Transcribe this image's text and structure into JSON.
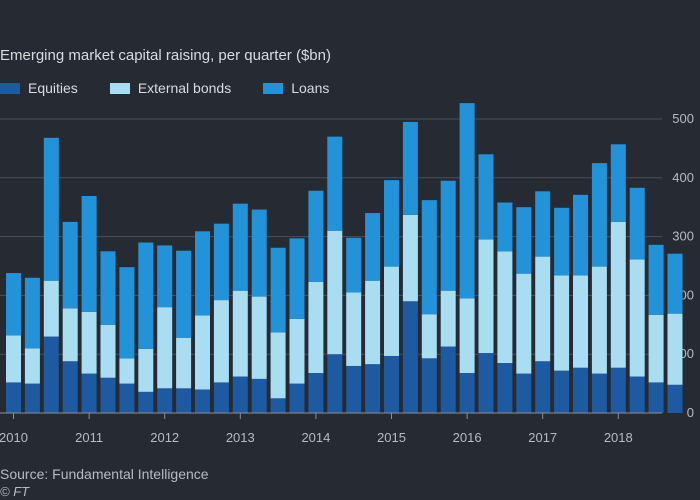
{
  "chart_data": {
    "type": "bar",
    "stacked": true,
    "title": "Emerging market capital raising, per quarter ($bn)",
    "ylabel": "",
    "xlabel": "",
    "ylim": [
      0,
      500
    ],
    "yticks": [
      0,
      100,
      200,
      300,
      400,
      500
    ],
    "ytick_labels": [
      "0",
      "100",
      "200",
      "300",
      "400",
      "500"
    ],
    "y_axis_side": "right",
    "grid": true,
    "legend_position": "top-left",
    "year_labels": [
      "2010",
      "2011",
      "2012",
      "2013",
      "2014",
      "2015",
      "2016",
      "2017",
      "2018"
    ],
    "year_first_quarter_index": [
      0,
      4,
      8,
      12,
      16,
      20,
      24,
      28,
      32
    ],
    "categories": [
      "2010 Q1",
      "2010 Q2",
      "2010 Q3",
      "2010 Q4",
      "2011 Q1",
      "2011 Q2",
      "2011 Q3",
      "2011 Q4",
      "2012 Q1",
      "2012 Q2",
      "2012 Q3",
      "2012 Q4",
      "2013 Q1",
      "2013 Q2",
      "2013 Q3",
      "2013 Q4",
      "2014 Q1",
      "2014 Q2",
      "2014 Q3",
      "2014 Q4",
      "2015 Q1",
      "2015 Q2",
      "2015 Q3",
      "2015 Q4",
      "2016 Q1",
      "2016 Q2",
      "2016 Q3",
      "2016 Q4",
      "2017 Q1",
      "2017 Q2",
      "2017 Q3",
      "2017 Q4",
      "2018 Q1",
      "2018 Q2",
      "2018 Q3",
      "2018 Q4"
    ],
    "series": [
      {
        "name": "Equities",
        "color": "#1d5aa2",
        "values": [
          52,
          50,
          130,
          88,
          67,
          60,
          50,
          36,
          42,
          42,
          40,
          52,
          62,
          58,
          25,
          50,
          68,
          100,
          80,
          83,
          97,
          190,
          93,
          113,
          68,
          102,
          85,
          67,
          88,
          72,
          77,
          67,
          77,
          62,
          52,
          48
        ]
      },
      {
        "name": "External bonds",
        "color": "#a8ddf2",
        "values": [
          80,
          60,
          95,
          90,
          105,
          90,
          43,
          73,
          138,
          86,
          126,
          140,
          146,
          140,
          112,
          110,
          155,
          210,
          125,
          142,
          152,
          147,
          75,
          95,
          127,
          193,
          190,
          170,
          178,
          162,
          157,
          182,
          248,
          199,
          115,
          121
        ]
      },
      {
        "name": "Loans",
        "color": "#2393d9",
        "values": [
          106,
          120,
          243,
          147,
          197,
          125,
          155,
          181,
          105,
          148,
          143,
          130,
          148,
          148,
          144,
          137,
          155,
          160,
          93,
          115,
          147,
          158,
          194,
          187,
          332,
          145,
          83,
          113,
          111,
          115,
          137,
          176,
          132,
          122,
          119,
          102
        ]
      }
    ]
  },
  "labels": {
    "title": "Emerging market capital raising, per quarter ($bn)",
    "source": "Source: Fundamental Intelligence",
    "copyright": "© FT"
  },
  "colors": {
    "background": "#262a33",
    "gridline": "#4a4f58",
    "baseline": "#8c9096",
    "text": "#cfd2d6"
  }
}
